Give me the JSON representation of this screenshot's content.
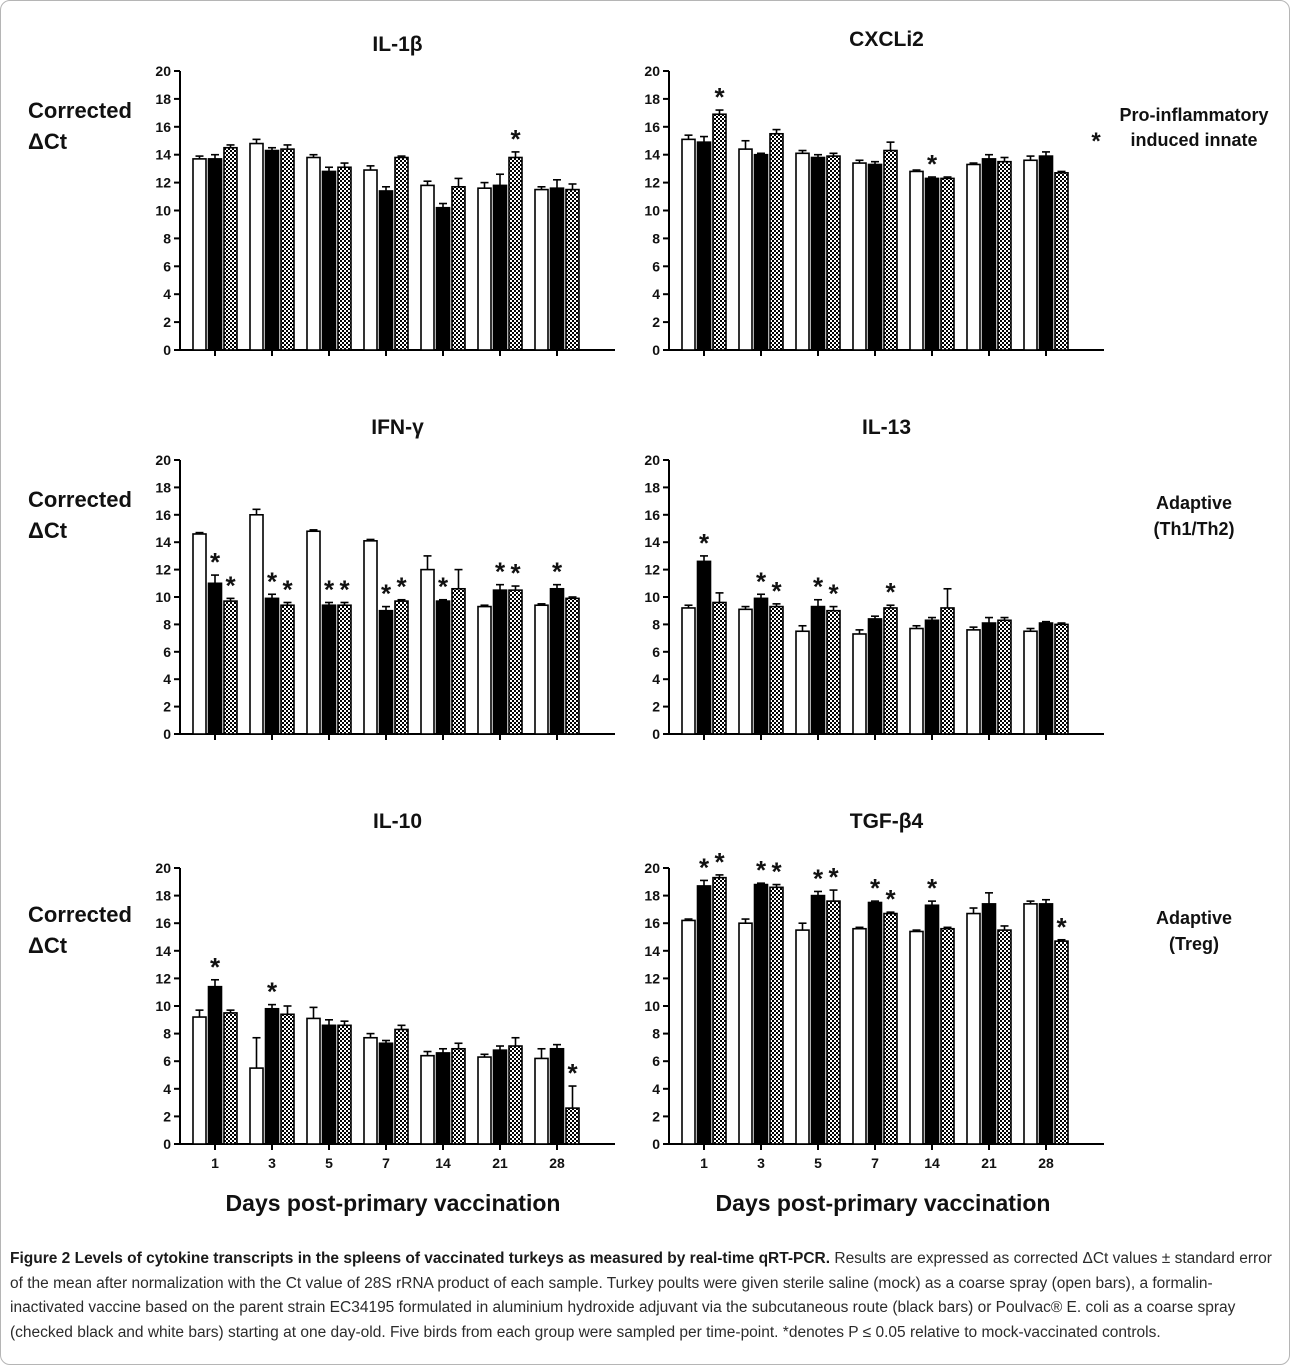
{
  "left_label": {
    "line1": "Corrected",
    "line2": "ΔCt"
  },
  "x_axis_title": "Days post-primary vaccination",
  "row_labels": [
    {
      "line1": "Pro-inflammatory",
      "line2": "induced innate",
      "marker": "*"
    },
    {
      "line1": "Adaptive",
      "line2": "(Th1/Th2)"
    },
    {
      "line1": "Adaptive",
      "line2": "(Treg)"
    }
  ],
  "group_colors": {
    "mock": "#ffffff",
    "formalin_vaccine": "#000000",
    "poulvac": "checkered"
  },
  "chart_data": [
    {
      "type": "bar",
      "title": "IL-1β",
      "ylim": [
        0,
        20
      ],
      "yticks": [
        0,
        2,
        4,
        6,
        8,
        10,
        12,
        14,
        16,
        18,
        20
      ],
      "categories": [
        "1",
        "3",
        "5",
        "7",
        "14",
        "21",
        "28"
      ],
      "series": [
        {
          "values": [
            13.7,
            14.8,
            13.8,
            12.9,
            11.8,
            11.6,
            11.5
          ],
          "errors": [
            0.2,
            0.3,
            0.2,
            0.3,
            0.3,
            0.4,
            0.2
          ]
        },
        {
          "values": [
            13.7,
            14.3,
            12.8,
            11.4,
            10.2,
            11.8,
            11.6
          ],
          "errors": [
            0.3,
            0.2,
            0.3,
            0.3,
            0.3,
            0.8,
            0.6
          ]
        },
        {
          "values": [
            14.5,
            14.4,
            13.1,
            13.8,
            11.7,
            13.8,
            11.5
          ],
          "errors": [
            0.2,
            0.3,
            0.3,
            0.1,
            0.6,
            0.4,
            0.4
          ]
        }
      ],
      "stars": [
        {
          "category": "21",
          "series": 2,
          "text": "*"
        }
      ]
    },
    {
      "type": "bar",
      "title": "CXCLi2",
      "ylim": [
        0,
        20
      ],
      "yticks": [
        0,
        2,
        4,
        6,
        8,
        10,
        12,
        14,
        16,
        18,
        20
      ],
      "categories": [
        "1",
        "3",
        "5",
        "7",
        "14",
        "21",
        "28"
      ],
      "series": [
        {
          "values": [
            15.1,
            14.4,
            14.1,
            13.4,
            12.8,
            13.3,
            13.6
          ],
          "errors": [
            0.3,
            0.6,
            0.2,
            0.2,
            0.1,
            0.1,
            0.3
          ]
        },
        {
          "values": [
            14.9,
            14.0,
            13.8,
            13.3,
            12.3,
            13.7,
            13.9
          ],
          "errors": [
            0.4,
            0.1,
            0.2,
            0.2,
            0.1,
            0.3,
            0.3
          ]
        },
        {
          "values": [
            16.9,
            15.5,
            13.9,
            14.3,
            12.3,
            13.5,
            12.7
          ],
          "errors": [
            0.3,
            0.3,
            0.2,
            0.6,
            0.1,
            0.3,
            0.1
          ]
        }
      ],
      "stars": [
        {
          "category": "1",
          "series": 2,
          "text": "*"
        },
        {
          "category": "14",
          "series": 1,
          "text": "*"
        }
      ]
    },
    {
      "type": "bar",
      "title": "IFN-γ",
      "ylim": [
        0,
        20
      ],
      "yticks": [
        0,
        2,
        4,
        6,
        8,
        10,
        12,
        14,
        16,
        18,
        20
      ],
      "categories": [
        "1",
        "3",
        "5",
        "7",
        "14",
        "21",
        "28"
      ],
      "series": [
        {
          "values": [
            14.6,
            16.0,
            14.8,
            14.1,
            12.0,
            9.3,
            9.4
          ],
          "errors": [
            0.1,
            0.4,
            0.1,
            0.1,
            1.0,
            0.1,
            0.1
          ]
        },
        {
          "values": [
            11.0,
            9.9,
            9.4,
            9.0,
            9.7,
            10.5,
            10.6
          ],
          "errors": [
            0.6,
            0.3,
            0.2,
            0.3,
            0.1,
            0.4,
            0.3
          ]
        },
        {
          "values": [
            9.7,
            9.4,
            9.4,
            9.7,
            10.6,
            10.5,
            9.9
          ],
          "errors": [
            0.2,
            0.2,
            0.2,
            0.1,
            1.4,
            0.3,
            0.1
          ]
        }
      ],
      "stars": [
        {
          "category": "1",
          "series": 1,
          "text": "*"
        },
        {
          "category": "1",
          "series": 2,
          "text": "*"
        },
        {
          "category": "3",
          "series": 1,
          "text": "*"
        },
        {
          "category": "3",
          "series": 2,
          "text": "*"
        },
        {
          "category": "5",
          "series": 1,
          "text": "*"
        },
        {
          "category": "5",
          "series": 2,
          "text": "*"
        },
        {
          "category": "7",
          "series": 1,
          "text": "*"
        },
        {
          "category": "7",
          "series": 2,
          "text": "*"
        },
        {
          "category": "14",
          "series": 1,
          "text": "*"
        },
        {
          "category": "21",
          "series": 1,
          "text": "*"
        },
        {
          "category": "21",
          "series": 2,
          "text": "*"
        },
        {
          "category": "28",
          "series": 1,
          "text": "*"
        }
      ]
    },
    {
      "type": "bar",
      "title": "IL-13",
      "ylim": [
        0,
        20
      ],
      "yticks": [
        0,
        2,
        4,
        6,
        8,
        10,
        12,
        14,
        16,
        18,
        20
      ],
      "categories": [
        "1",
        "3",
        "5",
        "7",
        "14",
        "21",
        "28"
      ],
      "series": [
        {
          "values": [
            9.2,
            9.1,
            7.5,
            7.3,
            7.7,
            7.6,
            7.5
          ],
          "errors": [
            0.2,
            0.2,
            0.4,
            0.3,
            0.2,
            0.2,
            0.2
          ]
        },
        {
          "values": [
            12.6,
            9.9,
            9.3,
            8.4,
            8.3,
            8.1,
            8.1
          ],
          "errors": [
            0.4,
            0.3,
            0.5,
            0.2,
            0.2,
            0.4,
            0.1
          ]
        },
        {
          "values": [
            9.6,
            9.3,
            9.0,
            9.2,
            9.2,
            8.3,
            8.0
          ],
          "errors": [
            0.7,
            0.2,
            0.3,
            0.2,
            1.4,
            0.2,
            0.1
          ]
        }
      ],
      "stars": [
        {
          "category": "1",
          "series": 1,
          "text": "*"
        },
        {
          "category": "3",
          "series": 1,
          "text": "*"
        },
        {
          "category": "3",
          "series": 2,
          "text": "*"
        },
        {
          "category": "5",
          "series": 1,
          "text": "*"
        },
        {
          "category": "5",
          "series": 2,
          "text": "*"
        },
        {
          "category": "7",
          "series": 2,
          "text": "*"
        }
      ]
    },
    {
      "type": "bar",
      "title": "IL-10",
      "ylim": [
        0,
        20
      ],
      "yticks": [
        0,
        2,
        4,
        6,
        8,
        10,
        12,
        14,
        16,
        18,
        20
      ],
      "categories": [
        "1",
        "3",
        "5",
        "7",
        "14",
        "21",
        "28"
      ],
      "x_axis_title": "Days post-primary vaccination",
      "series": [
        {
          "values": [
            9.2,
            5.5,
            9.1,
            7.7,
            6.4,
            6.3,
            6.2
          ],
          "errors": [
            0.5,
            2.2,
            0.8,
            0.3,
            0.3,
            0.2,
            0.7
          ]
        },
        {
          "values": [
            11.4,
            9.8,
            8.6,
            7.3,
            6.6,
            6.8,
            6.9
          ],
          "errors": [
            0.5,
            0.3,
            0.4,
            0.2,
            0.3,
            0.3,
            0.3
          ]
        },
        {
          "values": [
            9.5,
            9.4,
            8.6,
            8.3,
            6.9,
            7.1,
            2.6
          ],
          "errors": [
            0.2,
            0.6,
            0.3,
            0.3,
            0.4,
            0.6,
            1.6
          ]
        }
      ],
      "stars": [
        {
          "category": "1",
          "series": 1,
          "text": "*"
        },
        {
          "category": "3",
          "series": 1,
          "text": "*"
        },
        {
          "category": "28",
          "series": 2,
          "text": "*"
        }
      ]
    },
    {
      "type": "bar",
      "title": "TGF-β4",
      "ylim": [
        0,
        20
      ],
      "yticks": [
        0,
        2,
        4,
        6,
        8,
        10,
        12,
        14,
        16,
        18,
        20
      ],
      "categories": [
        "1",
        "3",
        "5",
        "7",
        "14",
        "21",
        "28"
      ],
      "x_axis_title": "Days post-primary vaccination",
      "series": [
        {
          "values": [
            16.2,
            16.0,
            15.5,
            15.6,
            15.4,
            16.7,
            17.4
          ],
          "errors": [
            0.1,
            0.3,
            0.5,
            0.1,
            0.1,
            0.4,
            0.2
          ]
        },
        {
          "values": [
            18.7,
            18.8,
            18.0,
            17.5,
            17.3,
            17.4,
            17.4
          ],
          "errors": [
            0.4,
            0.1,
            0.3,
            0.1,
            0.3,
            0.8,
            0.3
          ]
        },
        {
          "values": [
            19.3,
            18.6,
            17.6,
            16.7,
            15.6,
            15.5,
            14.7
          ],
          "errors": [
            0.2,
            0.2,
            0.8,
            0.1,
            0.1,
            0.3,
            0.1
          ]
        }
      ],
      "stars": [
        {
          "category": "1",
          "series": 1,
          "text": "*"
        },
        {
          "category": "1",
          "series": 2,
          "text": "*"
        },
        {
          "category": "3",
          "series": 1,
          "text": "*"
        },
        {
          "category": "3",
          "series": 2,
          "text": "*"
        },
        {
          "category": "5",
          "series": 1,
          "text": "*"
        },
        {
          "category": "5",
          "series": 2,
          "text": "*"
        },
        {
          "category": "7",
          "series": 1,
          "text": "*"
        },
        {
          "category": "7",
          "series": 2,
          "text": "*"
        },
        {
          "category": "14",
          "series": 1,
          "text": "*"
        },
        {
          "category": "28",
          "series": 2,
          "text": "*"
        }
      ]
    }
  ],
  "caption": {
    "bold": "Figure 2 Levels of cytokine transcripts in the spleens of vaccinated turkeys as measured by real-time qRT-PCR.",
    "body": " Results are expressed as corrected ΔCt values ± standard error of the mean after normalization with the Ct value of 28S rRNA product of each sample. Turkey poults were given sterile saline (mock) as a coarse spray (open bars), a formalin-inactivated vaccine based on the parent strain EC34195 formulated in aluminium hydroxide adjuvant via the subcutaneous route (black bars) or Poulvac® E. coli as a coarse spray (checked black and white bars) starting at one day-old. Five birds from each group were sampled per time-point. *denotes P ≤ 0.05 relative to mock-vaccinated controls."
  }
}
